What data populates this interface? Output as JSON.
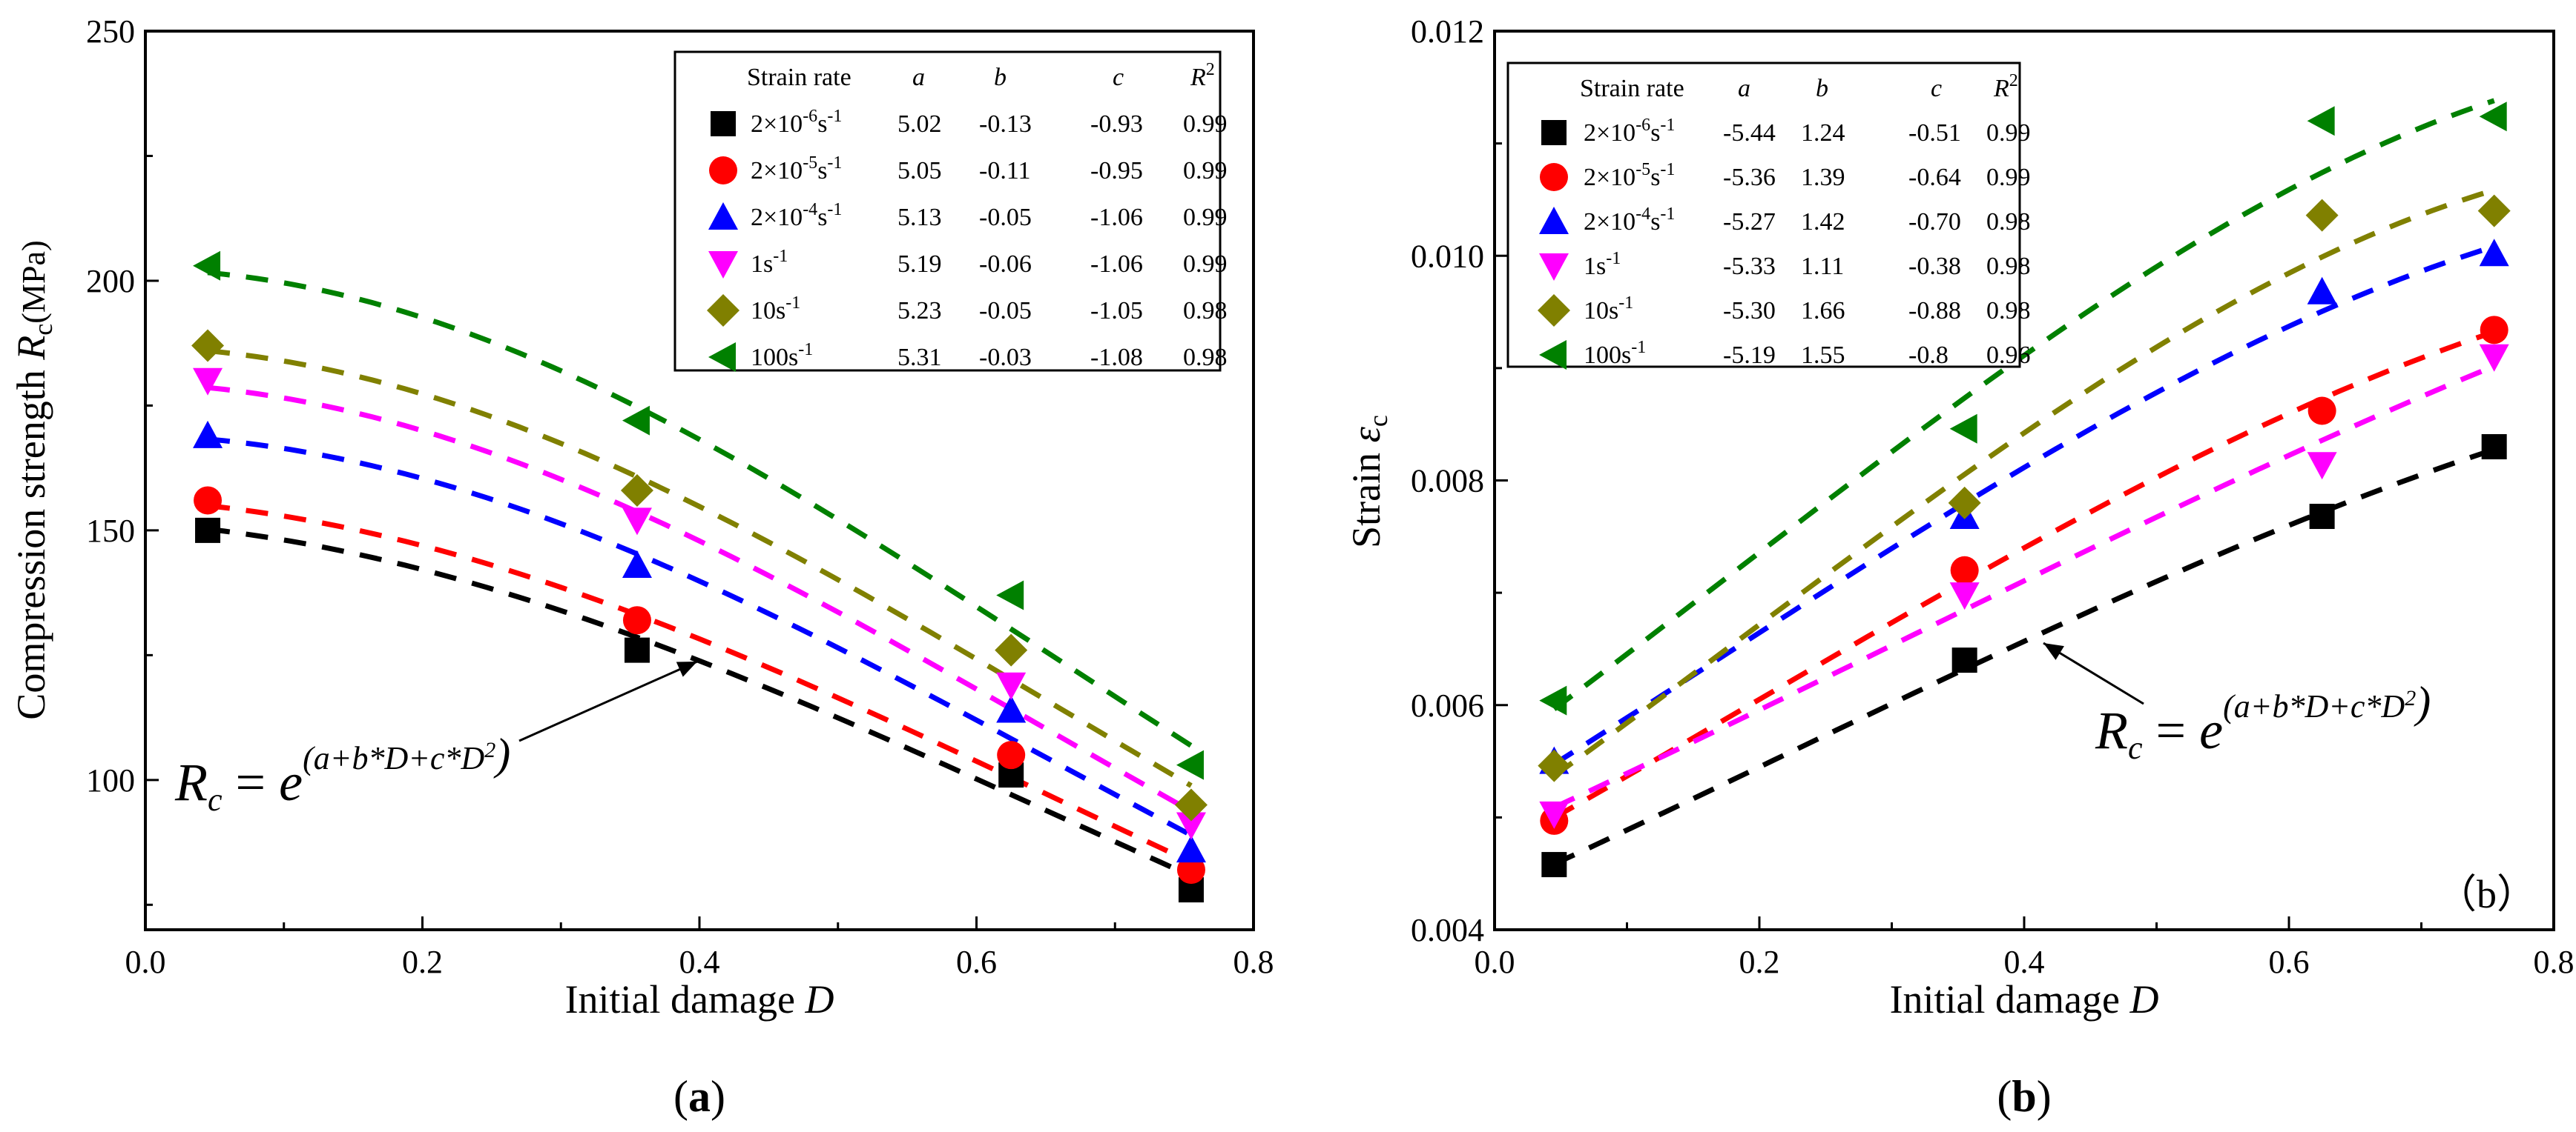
{
  "chart_data": [
    {
      "type": "scatter",
      "panel_label": "(a)",
      "xlabel": "Initial damage",
      "xlabel_var": "D",
      "ylabel": "Compression strength",
      "ylabel_var": "R",
      "ylabel_sub": "c",
      "ylabel_unit": "(MPa)",
      "xlim": [
        0.0,
        0.8
      ],
      "ylim": [
        70,
        250
      ],
      "xticks": [
        "0.0",
        "0.2",
        "0.4",
        "0.6",
        "0.8"
      ],
      "yticks": [
        "100",
        "150",
        "200",
        "250"
      ],
      "ytick_values": [
        100,
        150,
        200,
        250
      ],
      "x": [
        0.045,
        0.355,
        0.625,
        0.755
      ],
      "equation": {
        "lhs": "R",
        "lhs_sub": "c",
        "eq": "=",
        "base": "e",
        "exponent": "(a+b*D+c*D",
        "exp_sup": "2",
        "exp_close": ")"
      },
      "table": {
        "headers": [
          "Strain rate",
          "a",
          "b",
          "c",
          "R"
        ],
        "header_r_sup": "2",
        "rows": [
          {
            "rate_base": "2×10",
            "rate_exp": "-6",
            "rate_unit": "s",
            "rate_unit_exp": "-1",
            "a": "5.02",
            "b": "-0.13",
            "c": "-0.93",
            "r2": "0.99"
          },
          {
            "rate_base": "2×10",
            "rate_exp": "-5",
            "rate_unit": "s",
            "rate_unit_exp": "-1",
            "a": "5.05",
            "b": "-0.11",
            "c": "-0.95",
            "r2": "0.99"
          },
          {
            "rate_base": "2×10",
            "rate_exp": "-4",
            "rate_unit": "s",
            "rate_unit_exp": "-1",
            "a": "5.13",
            "b": "-0.05",
            "c": "-1.06",
            "r2": "0.99"
          },
          {
            "rate_base": "1",
            "rate_exp": "",
            "rate_unit": "s",
            "rate_unit_exp": "-1",
            "a": "5.19",
            "b": "-0.06",
            "c": "-1.06",
            "r2": "0.99"
          },
          {
            "rate_base": "10",
            "rate_exp": "",
            "rate_unit": "s",
            "rate_unit_exp": "-1",
            "a": "5.23",
            "b": "-0.05",
            "c": "-1.05",
            "r2": "0.98"
          },
          {
            "rate_base": "100",
            "rate_exp": "",
            "rate_unit": "s",
            "rate_unit_exp": "-1",
            "a": "5.31",
            "b": "-0.03",
            "c": "-1.08",
            "r2": "0.98"
          }
        ]
      },
      "series": [
        {
          "marker": "square",
          "color": "#000000",
          "values": [
            150,
            126,
            101,
            78
          ],
          "fit": {
            "a": 5.02,
            "b": -0.13,
            "c": -0.93
          }
        },
        {
          "marker": "circle",
          "color": "#ff0000",
          "values": [
            156,
            132,
            105,
            82
          ],
          "fit": {
            "a": 5.05,
            "b": -0.11,
            "c": -0.95
          }
        },
        {
          "marker": "triangle-up",
          "color": "#0000ff",
          "values": [
            169,
            143,
            114,
            86
          ],
          "fit": {
            "a": 5.13,
            "b": -0.05,
            "c": -1.06
          }
        },
        {
          "marker": "triangle-down",
          "color": "#ff00ff",
          "values": [
            180,
            152,
            119,
            91
          ],
          "fit": {
            "a": 5.19,
            "b": -0.06,
            "c": -1.06
          }
        },
        {
          "marker": "diamond",
          "color": "#808000",
          "values": [
            187,
            158,
            126,
            95
          ],
          "fit": {
            "a": 5.23,
            "b": -0.05,
            "c": -1.05
          }
        },
        {
          "marker": "triangle-left",
          "color": "#008000",
          "values": [
            203,
            172,
            137,
            103
          ],
          "fit": {
            "a": 5.31,
            "b": -0.03,
            "c": -1.08
          }
        }
      ]
    },
    {
      "type": "scatter",
      "panel_label": "(b)",
      "inner_label": "（b）",
      "xlabel": "Initial damage",
      "xlabel_var": "D",
      "ylabel": "Strain",
      "ylabel_var": "ε",
      "ylabel_sub": "c",
      "xlim": [
        0.0,
        0.8
      ],
      "ylim": [
        0.004,
        0.012
      ],
      "xticks": [
        "0.0",
        "0.2",
        "0.4",
        "0.6",
        "0.8"
      ],
      "yticks": [
        "0.004",
        "0.006",
        "0.008",
        "0.010",
        "0.012"
      ],
      "ytick_values": [
        0.004,
        0.006,
        0.008,
        0.01,
        0.012
      ],
      "x": [
        0.045,
        0.355,
        0.625,
        0.755
      ],
      "equation": {
        "lhs": "R",
        "lhs_sub": "c",
        "eq": "=",
        "base": "e",
        "exponent": "(a+b*D+c*D",
        "exp_sup": "2",
        "exp_close": ")"
      },
      "table": {
        "headers": [
          "Strain rate",
          "a",
          "b",
          "c",
          "R"
        ],
        "header_r_sup": "2",
        "rows": [
          {
            "rate_base": "2×10",
            "rate_exp": "-6",
            "rate_unit": "s",
            "rate_unit_exp": "-1",
            "a": "-5.44",
            "b": "1.24",
            "c": "-0.51",
            "r2": "0.99"
          },
          {
            "rate_base": "2×10",
            "rate_exp": "-5",
            "rate_unit": "s",
            "rate_unit_exp": "-1",
            "a": "-5.36",
            "b": "1.39",
            "c": "-0.64",
            "r2": "0.99"
          },
          {
            "rate_base": "2×10",
            "rate_exp": "-4",
            "rate_unit": "s",
            "rate_unit_exp": "-1",
            "a": "-5.27",
            "b": "1.42",
            "c": "-0.70",
            "r2": "0.98"
          },
          {
            "rate_base": "1",
            "rate_exp": "",
            "rate_unit": "s",
            "rate_unit_exp": "-1",
            "a": "-5.33",
            "b": "1.11",
            "c": "-0.38",
            "r2": "0.98"
          },
          {
            "rate_base": "10",
            "rate_exp": "",
            "rate_unit": "s",
            "rate_unit_exp": "-1",
            "a": "-5.30",
            "b": "1.66",
            "c": "-0.88",
            "r2": "0.98"
          },
          {
            "rate_base": "100",
            "rate_exp": "",
            "rate_unit": "s",
            "rate_unit_exp": "-1",
            "a": "-5.19",
            "b": "1.55",
            "c": "-0.8",
            "r2": "0.96"
          }
        ]
      },
      "series": [
        {
          "marker": "square",
          "color": "#000000",
          "values": [
            0.00458,
            0.0064,
            0.00768,
            0.0083
          ],
          "fit": {
            "a": -5.44,
            "b": 1.24,
            "c": -0.51
          }
        },
        {
          "marker": "circle",
          "color": "#ff0000",
          "values": [
            0.00497,
            0.0072,
            0.00862,
            0.00934
          ],
          "fit": {
            "a": -5.36,
            "b": 1.39,
            "c": -0.64
          }
        },
        {
          "marker": "triangle-up",
          "color": "#0000ff",
          "values": [
            0.0055,
            0.00768,
            0.00968,
            0.01002
          ],
          "fit": {
            "a": -5.27,
            "b": 1.42,
            "c": -0.7
          }
        },
        {
          "marker": "triangle-down",
          "color": "#ff00ff",
          "values": [
            0.00503,
            0.00698,
            0.00814,
            0.0091
          ],
          "fit": {
            "a": -5.33,
            "b": 1.11,
            "c": -0.38
          }
        },
        {
          "marker": "diamond",
          "color": "#808000",
          "values": [
            0.00546,
            0.0078,
            0.01036,
            0.0104
          ],
          "fit": {
            "a": -5.3,
            "b": 1.66,
            "c": -0.88
          }
        },
        {
          "marker": "triangle-left",
          "color": "#008000",
          "values": [
            0.00604,
            0.00846,
            0.0112,
            0.01124
          ],
          "fit": {
            "a": -5.19,
            "b": 1.55,
            "c": -0.8
          }
        }
      ]
    }
  ]
}
